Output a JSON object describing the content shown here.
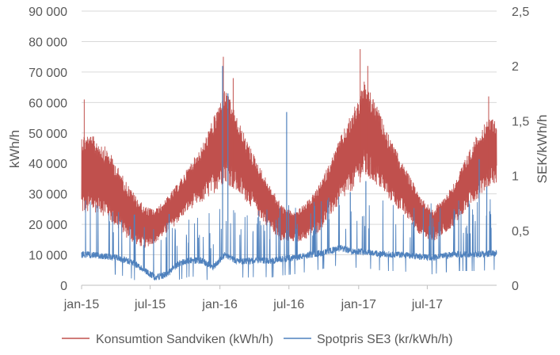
{
  "chart_data": {
    "type": "line",
    "title": "",
    "x_ticks": [
      "jan-15",
      "jul-15",
      "jan-16",
      "jul-16",
      "jan-17",
      "jul-17"
    ],
    "x_range": [
      "2015-01-01",
      "2017-12-31"
    ],
    "y_left": {
      "label": "kWh/h",
      "range": [
        0,
        90000
      ],
      "ticks": [
        "0",
        "10 000",
        "20 000",
        "30 000",
        "40 000",
        "50 000",
        "60 000",
        "70 000",
        "80 000",
        "90 000"
      ]
    },
    "y_right": {
      "label": "SEK/kWh/h",
      "range": [
        0,
        2.5
      ],
      "ticks": [
        "0",
        "0,5",
        "1",
        "1,5",
        "2",
        "2,5"
      ]
    },
    "grid": true,
    "legend_position": "bottom",
    "series": [
      {
        "name": "Konsumtion Sandviken (kWh/h)",
        "axis": "left",
        "color": "#c0504d",
        "x": [
          "2015-01",
          "2015-02",
          "2015-03",
          "2015-04",
          "2015-05",
          "2015-06",
          "2015-07",
          "2015-08",
          "2015-09",
          "2015-10",
          "2015-11",
          "2015-12",
          "2016-01",
          "2016-02",
          "2016-03",
          "2016-04",
          "2016-05",
          "2016-06",
          "2016-07",
          "2016-08",
          "2016-09",
          "2016-10",
          "2016-11",
          "2016-12",
          "2017-01",
          "2017-02",
          "2017-03",
          "2017-04",
          "2017-05",
          "2017-06",
          "2017-07",
          "2017-08",
          "2017-09",
          "2017-10",
          "2017-11",
          "2017-12"
        ],
        "low": [
          23000,
          24000,
          21000,
          17000,
          14000,
          12000,
          14000,
          17000,
          21000,
          25000,
          27000,
          30000,
          34000,
          30000,
          27000,
          22000,
          18000,
          14000,
          14000,
          15000,
          17000,
          22000,
          27000,
          31000,
          35000,
          33000,
          29000,
          25000,
          21000,
          16000,
          14000,
          17000,
          20000,
          25000,
          29000,
          33000
        ],
        "high": [
          50000,
          48000,
          44000,
          37000,
          31000,
          26000,
          25000,
          29000,
          34000,
          40000,
          46000,
          55000,
          65000,
          55000,
          47000,
          39000,
          32000,
          26000,
          24000,
          27000,
          32000,
          40000,
          49000,
          57000,
          67000,
          60000,
          51000,
          43000,
          36000,
          29000,
          25000,
          29000,
          35000,
          43000,
          51000,
          55000
        ],
        "peaks": [
          {
            "x": "2015-01-08",
            "y": 61000
          },
          {
            "x": "2016-01-10",
            "y": 75000
          },
          {
            "x": "2016-02-05",
            "y": 68000
          },
          {
            "x": "2017-01-05",
            "y": 77500
          },
          {
            "x": "2017-01-25",
            "y": 72000
          },
          {
            "x": "2017-12-10",
            "y": 62000
          }
        ]
      },
      {
        "name": "Spotpris SE3 (kr/kWh/h)",
        "axis": "right",
        "color": "#4f81bd",
        "x": [
          "2015-01",
          "2015-02",
          "2015-03",
          "2015-04",
          "2015-05",
          "2015-06",
          "2015-07",
          "2015-08",
          "2015-09",
          "2015-10",
          "2015-11",
          "2015-12",
          "2016-01",
          "2016-02",
          "2016-03",
          "2016-04",
          "2016-05",
          "2016-06",
          "2016-07",
          "2016-08",
          "2016-09",
          "2016-10",
          "2016-11",
          "2016-12",
          "2017-01",
          "2017-02",
          "2017-03",
          "2017-04",
          "2017-05",
          "2017-06",
          "2017-07",
          "2017-08",
          "2017-09",
          "2017-10",
          "2017-11",
          "2017-12"
        ],
        "base": [
          0.28,
          0.27,
          0.26,
          0.24,
          0.21,
          0.14,
          0.07,
          0.1,
          0.2,
          0.23,
          0.22,
          0.17,
          0.28,
          0.22,
          0.22,
          0.23,
          0.22,
          0.24,
          0.25,
          0.27,
          0.29,
          0.31,
          0.34,
          0.31,
          0.31,
          0.29,
          0.28,
          0.28,
          0.27,
          0.26,
          0.25,
          0.27,
          0.28,
          0.28,
          0.28,
          0.29
        ],
        "spikes": [
          {
            "x": "2016-01-08",
            "y": 2.0
          },
          {
            "x": "2016-01-22",
            "y": 1.75
          },
          {
            "x": "2016-06-25",
            "y": 1.58
          },
          {
            "x": "2015-08-20",
            "y": 0.65
          },
          {
            "x": "2016-12-10",
            "y": 0.85
          },
          {
            "x": "2017-01-20",
            "y": 0.95
          },
          {
            "x": "2017-11-15",
            "y": 1.15
          },
          {
            "x": "2017-12-05",
            "y": 0.9
          }
        ]
      }
    ]
  }
}
